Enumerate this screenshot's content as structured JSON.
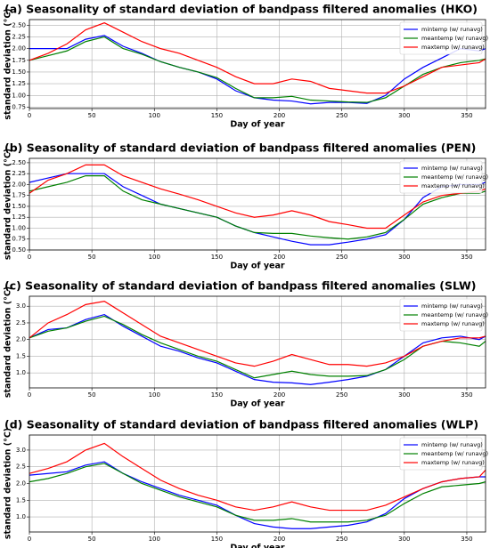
{
  "chart_data": [
    {
      "type": "line",
      "title": "(a) Seasonality of standard deviation of bandpass filtered anomalies (HKO)",
      "xlabel": "Day of year",
      "ylabel": "standard deviation (°C)",
      "x": [
        0,
        15,
        30,
        45,
        60,
        75,
        90,
        105,
        120,
        135,
        150,
        165,
        180,
        195,
        210,
        225,
        240,
        255,
        270,
        285,
        300,
        315,
        330,
        345,
        360,
        365
      ],
      "series": [
        {
          "name": "mintemp (w/ runavg)",
          "color": "#0000ff",
          "values": [
            2.0,
            2.0,
            2.0,
            2.2,
            2.28,
            2.05,
            1.9,
            1.72,
            1.6,
            1.5,
            1.35,
            1.1,
            0.95,
            0.9,
            0.88,
            0.82,
            0.85,
            0.85,
            0.83,
            1.0,
            1.35,
            1.6,
            1.8,
            2.0,
            1.95,
            2.0
          ]
        },
        {
          "name": "meantemp (w/ runavg)",
          "color": "#008000",
          "values": [
            1.75,
            1.85,
            1.95,
            2.15,
            2.25,
            2.0,
            1.88,
            1.72,
            1.6,
            1.5,
            1.38,
            1.15,
            0.95,
            0.95,
            0.98,
            0.9,
            0.88,
            0.86,
            0.85,
            0.95,
            1.2,
            1.45,
            1.6,
            1.7,
            1.75,
            1.78
          ]
        },
        {
          "name": "maxtemp (w/ runavg)",
          "color": "#ff0000",
          "values": [
            1.75,
            1.9,
            2.1,
            2.4,
            2.55,
            2.35,
            2.15,
            2.0,
            1.9,
            1.75,
            1.6,
            1.4,
            1.25,
            1.25,
            1.35,
            1.3,
            1.15,
            1.1,
            1.05,
            1.05,
            1.2,
            1.4,
            1.6,
            1.65,
            1.7,
            1.78
          ]
        }
      ],
      "xlim": [
        0,
        365
      ],
      "xticks": [
        0,
        50,
        100,
        150,
        200,
        250,
        300,
        350
      ],
      "ylim": [
        0.72,
        2.62
      ],
      "yticks": [
        0.75,
        {
          "value": 1,
          "label": "1.00"
        },
        1.25,
        {
          "value": 1.5,
          "label": "1.50"
        },
        1.75,
        {
          "value": 2,
          "label": "2.00"
        },
        2.25,
        {
          "value": 2.5,
          "label": "2.50"
        }
      ],
      "grid": true,
      "legend": "upper right"
    },
    {
      "type": "line",
      "title": "(b) Seasonality of standard deviation of bandpass filtered anomalies (PEN)",
      "xlabel": "Day of year",
      "ylabel": "standard deviation (°C)",
      "x": [
        0,
        15,
        30,
        45,
        60,
        75,
        90,
        105,
        120,
        135,
        150,
        165,
        180,
        195,
        210,
        225,
        240,
        255,
        270,
        285,
        300,
        315,
        330,
        345,
        360,
        365
      ],
      "series": [
        {
          "name": "mintemp (w/ runavg)",
          "color": "#0000ff",
          "values": [
            2.05,
            2.15,
            2.25,
            2.25,
            2.25,
            1.95,
            1.75,
            1.55,
            1.45,
            1.35,
            1.25,
            1.05,
            0.9,
            0.8,
            0.7,
            0.62,
            0.62,
            0.68,
            0.75,
            0.85,
            1.2,
            1.7,
            1.95,
            2.0,
            2.0,
            2.05
          ]
        },
        {
          "name": "meantemp (w/ runavg)",
          "color": "#008000",
          "values": [
            1.85,
            1.95,
            2.05,
            2.2,
            2.2,
            1.85,
            1.65,
            1.55,
            1.45,
            1.35,
            1.25,
            1.05,
            0.9,
            0.88,
            0.88,
            0.82,
            0.78,
            0.75,
            0.8,
            0.9,
            1.2,
            1.55,
            1.7,
            1.8,
            1.8,
            1.85
          ]
        },
        {
          "name": "maxtemp (w/ runavg)",
          "color": "#ff0000",
          "values": [
            1.8,
            2.1,
            2.25,
            2.45,
            2.45,
            2.2,
            2.05,
            1.9,
            1.78,
            1.65,
            1.5,
            1.35,
            1.25,
            1.3,
            1.4,
            1.3,
            1.15,
            1.08,
            1.0,
            1.0,
            1.3,
            1.6,
            1.75,
            1.8,
            1.85,
            1.9
          ]
        }
      ],
      "xlim": [
        0,
        365
      ],
      "xticks": [
        0,
        50,
        100,
        150,
        200,
        250,
        300,
        350
      ],
      "ylim": [
        0.5,
        2.6
      ],
      "yticks": [
        {
          "value": 0.5,
          "label": "0.50"
        },
        0.75,
        {
          "value": 1,
          "label": "1.00"
        },
        1.25,
        {
          "value": 1.5,
          "label": "1.50"
        },
        1.75,
        {
          "value": 2,
          "label": "2.00"
        },
        2.25,
        {
          "value": 2.5,
          "label": "2.50"
        }
      ],
      "grid": true,
      "legend": "upper right"
    },
    {
      "type": "line",
      "title": "(c) Seasonality of standard deviation of bandpass filtered anomalies (SLW)",
      "xlabel": "Day of year",
      "ylabel": "standard deviation (°C)",
      "x": [
        0,
        15,
        30,
        45,
        60,
        75,
        90,
        105,
        120,
        135,
        150,
        165,
        180,
        195,
        210,
        225,
        240,
        255,
        270,
        285,
        300,
        315,
        330,
        345,
        360,
        365
      ],
      "series": [
        {
          "name": "mintemp (w/ runavg)",
          "color": "#0000ff",
          "values": [
            2.05,
            2.3,
            2.35,
            2.6,
            2.75,
            2.4,
            2.1,
            1.8,
            1.65,
            1.45,
            1.3,
            1.05,
            0.8,
            0.72,
            0.7,
            0.65,
            0.72,
            0.8,
            0.9,
            1.1,
            1.5,
            1.9,
            2.05,
            2.1,
            2.0,
            2.1
          ]
        },
        {
          "name": "meantemp (w/ runavg)",
          "color": "#008000",
          "values": [
            2.05,
            2.25,
            2.35,
            2.55,
            2.7,
            2.45,
            2.15,
            1.9,
            1.7,
            1.5,
            1.35,
            1.1,
            0.85,
            0.95,
            1.05,
            0.95,
            0.9,
            0.9,
            0.92,
            1.1,
            1.4,
            1.8,
            1.95,
            1.9,
            1.8,
            1.95
          ]
        },
        {
          "name": "maxtemp (w/ runavg)",
          "color": "#ff0000",
          "values": [
            2.05,
            2.5,
            2.75,
            3.05,
            3.15,
            2.8,
            2.45,
            2.1,
            1.9,
            1.7,
            1.5,
            1.3,
            1.2,
            1.35,
            1.55,
            1.4,
            1.25,
            1.25,
            1.2,
            1.3,
            1.5,
            1.8,
            1.95,
            2.05,
            2.05,
            2.1
          ]
        }
      ],
      "xlim": [
        0,
        365
      ],
      "xticks": [
        0,
        50,
        100,
        150,
        200,
        250,
        300,
        350
      ],
      "ylim": [
        0.55,
        3.3
      ],
      "yticks": [
        {
          "value": 1,
          "label": "1.0"
        },
        1.5,
        {
          "value": 2,
          "label": "2.0"
        },
        2.5,
        {
          "value": 3,
          "label": "3.0"
        }
      ],
      "grid": true,
      "legend": "upper right"
    },
    {
      "type": "line",
      "title": "(d) Seasonality of standard deviation of bandpass filtered anomalies (WLP)",
      "xlabel": "Day of year",
      "ylabel": "standard deviation (°C)",
      "x": [
        0,
        15,
        30,
        45,
        60,
        75,
        90,
        105,
        120,
        135,
        150,
        165,
        180,
        195,
        210,
        225,
        240,
        255,
        270,
        285,
        300,
        315,
        330,
        345,
        360,
        365
      ],
      "series": [
        {
          "name": "mintemp (w/ runavg)",
          "color": "#0000ff",
          "values": [
            2.25,
            2.3,
            2.35,
            2.55,
            2.65,
            2.3,
            2.05,
            1.85,
            1.65,
            1.5,
            1.35,
            1.05,
            0.8,
            0.7,
            0.65,
            0.65,
            0.7,
            0.75,
            0.85,
            1.1,
            1.55,
            1.85,
            2.05,
            2.15,
            2.2,
            2.2
          ]
        },
        {
          "name": "meantemp (w/ runavg)",
          "color": "#008000",
          "values": [
            2.05,
            2.15,
            2.3,
            2.5,
            2.6,
            2.3,
            2.0,
            1.8,
            1.6,
            1.45,
            1.3,
            1.05,
            0.9,
            0.9,
            0.95,
            0.85,
            0.85,
            0.85,
            0.9,
            1.05,
            1.4,
            1.7,
            1.9,
            1.95,
            2.0,
            2.05
          ]
        },
        {
          "name": "maxtemp (w/ runavg)",
          "color": "#ff0000",
          "values": [
            2.3,
            2.45,
            2.65,
            3.0,
            3.2,
            2.8,
            2.45,
            2.1,
            1.85,
            1.65,
            1.5,
            1.3,
            1.2,
            1.3,
            1.45,
            1.3,
            1.2,
            1.2,
            1.2,
            1.35,
            1.6,
            1.85,
            2.05,
            2.15,
            2.2,
            2.4
          ]
        }
      ],
      "xlim": [
        0,
        365
      ],
      "xticks": [
        0,
        50,
        100,
        150,
        200,
        250,
        300,
        350
      ],
      "ylim": [
        0.55,
        3.45
      ],
      "yticks": [
        {
          "value": 1,
          "label": "1.0"
        },
        1.5,
        {
          "value": 2,
          "label": "2.0"
        },
        2.5,
        {
          "value": 3,
          "label": "3.0"
        }
      ],
      "grid": true,
      "legend": "upper right"
    }
  ]
}
